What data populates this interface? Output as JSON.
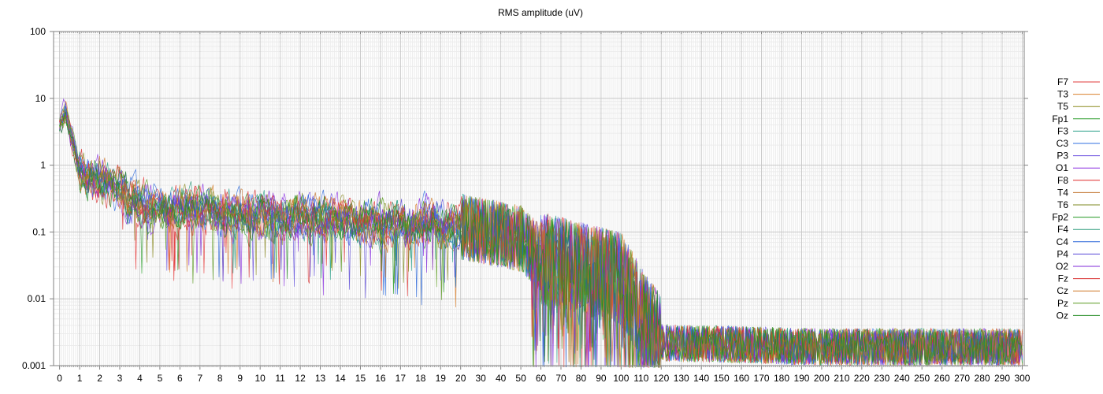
{
  "chart_data": {
    "type": "line",
    "title": "RMS amplitude (uV)",
    "xlabel": "",
    "ylabel": "",
    "y_scale": "log",
    "ylim": [
      0.001,
      100
    ],
    "y_ticks": [
      "100",
      "10",
      "1",
      "0.1",
      "0.01",
      "0.001"
    ],
    "x_axis_note": "piecewise frequency axis: 0-20 in steps of 1, then 20-300 in steps of 10",
    "x_ticks": [
      "0",
      "1",
      "2",
      "3",
      "4",
      "5",
      "6",
      "7",
      "8",
      "9",
      "10",
      "11",
      "12",
      "13",
      "14",
      "15",
      "16",
      "17",
      "18",
      "19",
      "20",
      "30",
      "40",
      "50",
      "60",
      "70",
      "80",
      "90",
      "100",
      "110",
      "120",
      "130",
      "140",
      "150",
      "160",
      "170",
      "180",
      "190",
      "200",
      "210",
      "220",
      "230",
      "240",
      "250",
      "260",
      "270",
      "280",
      "290",
      "300"
    ],
    "xlim": [
      0,
      300
    ],
    "grid": true,
    "legend_position": "right",
    "series": [
      {
        "name": "F7",
        "color": "#e03b3b"
      },
      {
        "name": "T3",
        "color": "#d9802c"
      },
      {
        "name": "T5",
        "color": "#8a8a1e"
      },
      {
        "name": "Fp1",
        "color": "#2e9e2e"
      },
      {
        "name": "F3",
        "color": "#2aa08a"
      },
      {
        "name": "C3",
        "color": "#2f6fe0"
      },
      {
        "name": "P3",
        "color": "#6a4fe0"
      },
      {
        "name": "O1",
        "color": "#8a2fe0"
      },
      {
        "name": "F8",
        "color": "#e02a2a"
      },
      {
        "name": "T4",
        "color": "#c0702a"
      },
      {
        "name": "T6",
        "color": "#7d8a20"
      },
      {
        "name": "Fp2",
        "color": "#259a25"
      },
      {
        "name": "F4",
        "color": "#2a9a7a"
      },
      {
        "name": "C4",
        "color": "#2a66d8"
      },
      {
        "name": "P4",
        "color": "#5a48d8"
      },
      {
        "name": "O2",
        "color": "#7f2ad8"
      },
      {
        "name": "Fz",
        "color": "#d82f2f"
      },
      {
        "name": "Cz",
        "color": "#d07a2a"
      },
      {
        "name": "Pz",
        "color": "#5a9a20"
      },
      {
        "name": "Oz",
        "color": "#1e8a1e"
      }
    ],
    "spectrum_profile": [
      {
        "x": 0,
        "y": 4
      },
      {
        "x": 0.3,
        "y": 6
      },
      {
        "x": 1,
        "y": 0.8
      },
      {
        "x": 2,
        "y": 0.6
      },
      {
        "x": 3,
        "y": 0.45
      },
      {
        "x": 4,
        "y": 0.25
      },
      {
        "x": 6,
        "y": 0.22
      },
      {
        "x": 10,
        "y": 0.18
      },
      {
        "x": 15,
        "y": 0.14
      },
      {
        "x": 20,
        "y": 0.12
      },
      {
        "x": 50,
        "y": 0.08
      },
      {
        "x": 60,
        "y": 0.04
      },
      {
        "x": 100,
        "y": 0.02
      },
      {
        "x": 110,
        "y": 0.006
      },
      {
        "x": 120,
        "y": 0.0022
      },
      {
        "x": 200,
        "y": 0.0019
      },
      {
        "x": 300,
        "y": 0.0019
      }
    ]
  }
}
